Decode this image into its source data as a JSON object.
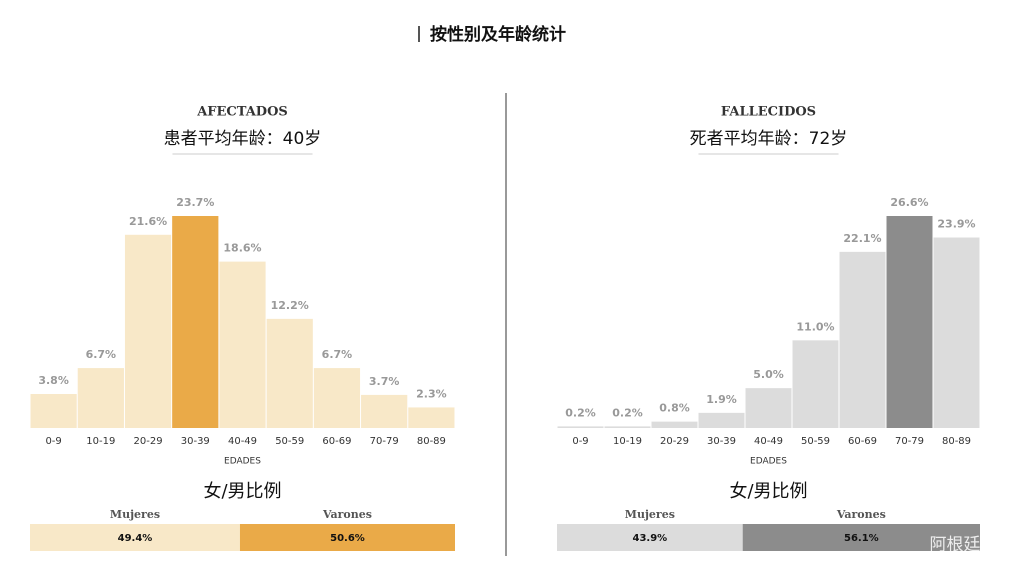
{
  "title": "按性别及年龄统计",
  "watermark": "阿根廷",
  "chart_data": [
    {
      "type": "bar",
      "title": "AFECTADOS",
      "subtitle": "患者平均年龄：40岁",
      "xlabel": "EDADES",
      "categories": [
        "0-9",
        "10-19",
        "20-29",
        "30-39",
        "40-49",
        "50-59",
        "60-69",
        "70-79",
        "80-89"
      ],
      "values": [
        3.8,
        6.7,
        21.6,
        23.7,
        18.6,
        12.2,
        6.7,
        3.7,
        2.3
      ],
      "value_labels": [
        "3.8%",
        "6.7%",
        "21.6%",
        "23.7%",
        "18.6%",
        "12.2%",
        "6.7%",
        "3.7%",
        "2.3%"
      ],
      "colors": [
        "#f8e8c8",
        "#f8e8c8",
        "#f8e8c8",
        "#eaaa48",
        "#f8e8c8",
        "#f8e8c8",
        "#f8e8c8",
        "#f8e8c8",
        "#f8e8c8"
      ]
    },
    {
      "type": "bar",
      "title": "FALLECIDOS",
      "subtitle": "死者平均年龄：72岁",
      "xlabel": "EDADES",
      "categories": [
        "0-9",
        "10-19",
        "20-29",
        "30-39",
        "40-49",
        "50-59",
        "60-69",
        "70-79",
        "80-89"
      ],
      "values": [
        0.2,
        0.2,
        0.8,
        1.9,
        5.0,
        11.0,
        22.1,
        26.6,
        23.9
      ],
      "value_labels": [
        "0.2%",
        "0.2%",
        "0.8%",
        "1.9%",
        "5.0%",
        "11.0%",
        "22.1%",
        "26.6%",
        "23.9%"
      ],
      "colors": [
        "#dcdcdc",
        "#dcdcdc",
        "#dcdcdc",
        "#dcdcdc",
        "#dcdcdc",
        "#dcdcdc",
        "#dcdcdc",
        "#8c8c8c",
        "#dcdcdc"
      ]
    },
    {
      "type": "stacked_bar",
      "title": "女/男比例",
      "series": [
        {
          "name": "Mujeres",
          "color": "#f8e8c8",
          "values": [
            49.4
          ],
          "value_labels": [
            "49.4%"
          ]
        },
        {
          "name": "Varones",
          "color": "#eaaa48",
          "values": [
            50.6
          ],
          "value_labels": [
            "50.6%"
          ]
        }
      ]
    },
    {
      "type": "stacked_bar",
      "title": "女/男比例",
      "series": [
        {
          "name": "Mujeres",
          "color": "#dcdcdc",
          "values": [
            43.9
          ],
          "value_labels": [
            "43.9%"
          ]
        },
        {
          "name": "Varones",
          "color": "#8c8c8c",
          "values": [
            56.1
          ],
          "value_labels": [
            "56.1%"
          ]
        }
      ]
    }
  ]
}
